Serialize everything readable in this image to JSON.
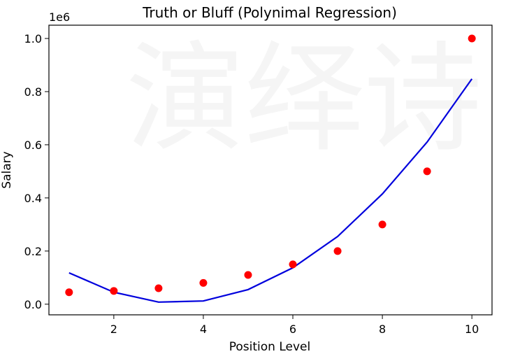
{
  "chart_data": {
    "type": "scatter",
    "title": "Truth or Bluff (Polynimal Regression)",
    "xlabel": "Position Level",
    "ylabel": "Salary",
    "y_offset_text": "1e6",
    "xlim": [
      0.55,
      10.45
    ],
    "ylim": [
      -0.04,
      1.05
    ],
    "x_ticks": [
      2,
      4,
      6,
      8,
      10
    ],
    "x_tick_labels": [
      "2",
      "4",
      "6",
      "8",
      "10"
    ],
    "y_ticks": [
      0.0,
      0.2,
      0.4,
      0.6,
      0.8,
      1.0
    ],
    "y_tick_labels": [
      "0.0",
      "0.2",
      "0.4",
      "0.6",
      "0.8",
      "1.0"
    ],
    "grid": false,
    "watermark_text": "演绎诗",
    "series": [
      {
        "type": "scatter",
        "color": "#ff0000",
        "x": [
          1,
          2,
          3,
          4,
          5,
          6,
          7,
          8,
          9,
          10
        ],
        "y": [
          0.045,
          0.05,
          0.06,
          0.08,
          0.11,
          0.15,
          0.2,
          0.3,
          0.5,
          1.0
        ]
      },
      {
        "type": "line",
        "color": "#0000dd",
        "x": [
          1,
          2,
          3,
          4,
          5,
          6,
          7,
          8,
          9,
          10
        ],
        "y": [
          0.118,
          0.045,
          0.008,
          0.012,
          0.055,
          0.137,
          0.255,
          0.415,
          0.61,
          0.848
        ]
      }
    ]
  }
}
